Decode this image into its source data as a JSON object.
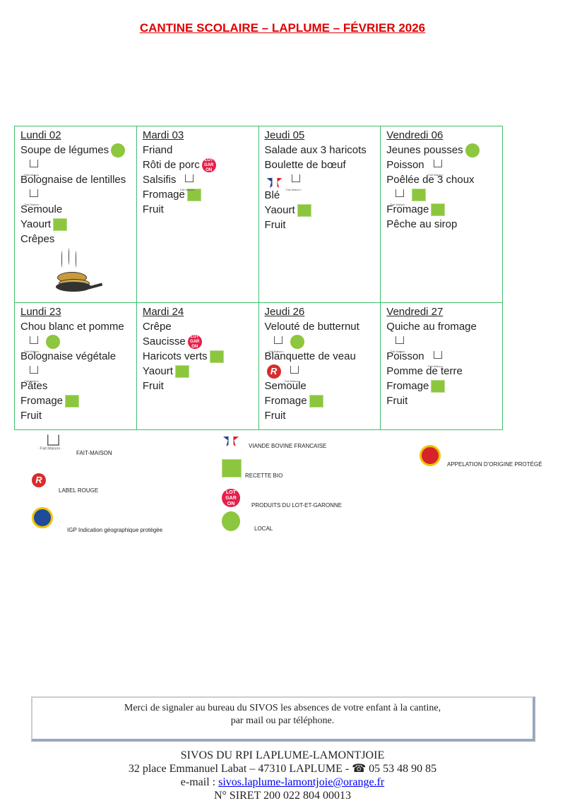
{
  "title": "CANTINE SCOLAIRE – LAPLUME –  FÉVRIER 2026",
  "colors": {
    "title": "#e00000",
    "grid": "#3cbf6a",
    "bio": "#8cc63e",
    "local": "#8dc63f",
    "lot": "#e4204a"
  },
  "weeks": [
    [
      {
        "day": "Lundi 02",
        "items": [
          {
            "text": "Soupe de légumes",
            "icons": [
              "local",
              "fait-maison"
            ]
          },
          {
            "text": "Bolognaise de lentilles",
            "icons": [
              "fait-maison"
            ],
            "icons_break": true
          },
          {
            "text": "Semoule",
            "icons": []
          },
          {
            "text": "Yaourt",
            "icons": [
              "bio"
            ]
          },
          {
            "text": "Crêpes",
            "icons": []
          }
        ],
        "picture": "crepes-pan"
      },
      {
        "day": "Mardi 03",
        "items": [
          {
            "text": "Friand",
            "icons": []
          },
          {
            "text": "Rôti de porc",
            "icons": [
              "lot-et-garonne"
            ]
          },
          {
            "text": "Salsifis",
            "icons": [
              "fait-maison"
            ]
          },
          {
            "text": "Fromage",
            "icons": [
              "bio"
            ]
          },
          {
            "text": "Fruit",
            "icons": []
          }
        ]
      },
      {
        "day": "Jeudi 05",
        "items": [
          {
            "text": "Salade aux 3 haricots",
            "icons": []
          },
          {
            "text": "Boulette de bœuf",
            "icons": [
              "viande-bovine-francaise",
              "fait-maison"
            ],
            "icons_break": true
          },
          {
            "text": "Blé",
            "icons": []
          },
          {
            "text": "Yaourt",
            "icons": [
              "bio"
            ]
          },
          {
            "text": "Fruit",
            "icons": []
          }
        ]
      },
      {
        "day": "Vendredi 06",
        "items": [
          {
            "text": "Jeunes pousses",
            "icons": [
              "local"
            ]
          },
          {
            "text": "Poisson",
            "icons": [
              "fait-maison"
            ]
          },
          {
            "text": "Poêlée de 3 choux",
            "icons": [
              "fait-maison",
              "bio"
            ],
            "icons_break": true
          },
          {
            "text": "Fromage",
            "icons": [
              "bio"
            ]
          },
          {
            "text": "Pêche au sirop",
            "icons": []
          }
        ]
      }
    ],
    [
      {
        "day": "Lundi 23",
        "items": [
          {
            "text": "Chou blanc et pomme",
            "icons": [
              "fait-maison",
              "local"
            ]
          },
          {
            "text": "Bolognaise végétale",
            "icons": [
              "fait-maison"
            ],
            "icons_break": true
          },
          {
            "text": "Pâtes",
            "icons": []
          },
          {
            "text": "Fromage",
            "icons": [
              "bio"
            ]
          },
          {
            "text": "Fruit",
            "icons": []
          }
        ]
      },
      {
        "day": "Mardi 24",
        "items": [
          {
            "text": "Crêpe",
            "icons": []
          },
          {
            "text": "Saucisse",
            "icons": [
              "lot-et-garonne"
            ]
          },
          {
            "text": "Haricots verts",
            "icons": [
              "bio"
            ]
          },
          {
            "text": "Yaourt",
            "icons": [
              "bio"
            ]
          },
          {
            "text": "Fruit",
            "icons": []
          }
        ]
      },
      {
        "day": "Jeudi 26",
        "items": [
          {
            "text": "Velouté de butternut",
            "icons": [
              "fait-maison",
              "local"
            ]
          },
          {
            "text": "Blanquette de veau",
            "icons": [
              "label-rouge",
              "fait-maison"
            ],
            "icons_break": true
          },
          {
            "text": "Semoule",
            "icons": []
          },
          {
            "text": "Fromage",
            "icons": [
              "bio"
            ]
          },
          {
            "text": "Fruit",
            "icons": []
          }
        ]
      },
      {
        "day": "Vendredi 27",
        "items": [
          {
            "text": "Quiche au fromage",
            "icons": [
              "fait-maison"
            ],
            "icons_break": true
          },
          {
            "text": "Poisson",
            "icons": [
              "fait-maison"
            ]
          },
          {
            "text": "Pomme de terre",
            "icons": []
          },
          {
            "text": "Fromage",
            "icons": [
              "bio"
            ]
          },
          {
            "text": "Fruit",
            "icons": []
          }
        ]
      }
    ]
  ],
  "legend": {
    "fait_maison": "FAIT-MAISON",
    "label_rouge": "LABEL ROUGE",
    "igp": "IGP Indication géographique protégée",
    "vbf": "VIANDE BOVINE FRANCAISE",
    "bio": "RECETTE BIO",
    "lot": "PRODUITS DU LOT-ET-GARONNE",
    "local": "LOCAL",
    "aop": "APPELATION D’ORIGINE PROTÉGÉ"
  },
  "notice": {
    "line1": "Merci de signaler au bureau du SIVOS les absences de votre enfant à la cantine,",
    "line2": "par mail ou par téléphone."
  },
  "footer": {
    "org": "SIVOS DU RPI LAPLUME-LAMONTJOIE",
    "address": "32 place Emmanuel Labat – 47310 LAPLUME - ",
    "phone_icon": "telephone-icon",
    "phone": " 05 53 48 90 85",
    "email_label": "e-mail :  ",
    "email": "sivos.laplume-lamontjoie@orange.fr",
    "siret": "N° SIRET 200 022 804 00013"
  }
}
